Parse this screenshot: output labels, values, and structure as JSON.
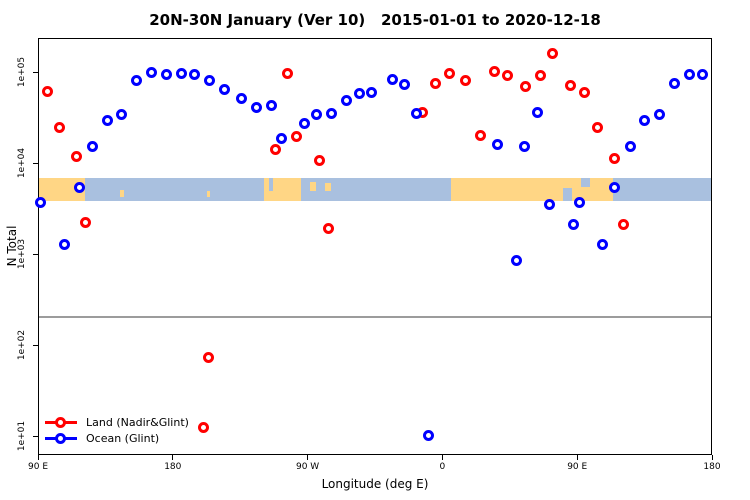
{
  "title": "20N-30N January (Ver 10)   2015-01-01 to 2020-12-18",
  "colors": {
    "land_series": "#ff0000",
    "ocean_series": "#0000ff",
    "map_land": "#ffd685",
    "map_ocean": "#a9c0df",
    "reference_line": "#9c9c9c",
    "axis": "#000000"
  },
  "legend": {
    "items": [
      {
        "label": "Land (Nadir&Glint)",
        "color": "#ff0000"
      },
      {
        "label": "Ocean (Glint)",
        "color": "#0000ff"
      }
    ]
  },
  "chart_data": {
    "type": "scatter",
    "title": "20N-30N January (Ver 10)   2015-01-01 to 2020-12-18",
    "xlabel": "Longitude (deg E)",
    "ylabel": "N Total",
    "x_axis": {
      "range_deg": [
        90,
        540
      ],
      "ticks": [
        {
          "lon": 90,
          "label": "90 E"
        },
        {
          "lon": 180,
          "label": "180"
        },
        {
          "lon": 270,
          "label": "90 W"
        },
        {
          "lon": 360,
          "label": "0"
        },
        {
          "lon": 450,
          "label": "90 E"
        },
        {
          "lon": 540,
          "label": "180"
        }
      ],
      "note": "longitude axis spans 450 deg, wrapping eastward from 90E"
    },
    "y_axis": {
      "scale": "log",
      "range": [
        6.2,
        236000
      ],
      "ticks": [
        {
          "value": 100000,
          "label": "1e+05"
        },
        {
          "value": 10000,
          "label": "1e+04"
        },
        {
          "value": 1000,
          "label": "1e+03"
        },
        {
          "value": 100,
          "label": "1e+02"
        },
        {
          "value": 10,
          "label": "1e+01"
        }
      ],
      "grid": false
    },
    "reference_line": {
      "value": 208,
      "color": "#9c9c9c"
    },
    "map_band": {
      "value_top": 7000,
      "value_bottom": 3900,
      "ocean_color": "#a9c0df",
      "land_color": "#ffd685",
      "land_segments": [
        {
          "lon": [
            90,
            121
          ],
          "top": 0,
          "h": 1
        },
        {
          "lon": [
            144,
            147
          ],
          "top": 0.5,
          "h": 0.3
        },
        {
          "lon": [
            202,
            204
          ],
          "top": 0.55,
          "h": 0.25
        },
        {
          "lon": [
            240,
            265
          ],
          "top": 0,
          "h": 1
        },
        {
          "lon": [
            271,
            275
          ],
          "top": 0.15,
          "h": 0.4
        },
        {
          "lon": [
            281,
            285
          ],
          "top": 0.2,
          "h": 0.35
        },
        {
          "lon": [
            365,
            473
          ],
          "top": 0,
          "h": 1
        }
      ],
      "ocean_patches": [
        {
          "lon": [
            243.5,
            246
          ],
          "top": 0,
          "h": 0.55
        },
        {
          "lon": [
            440,
            446
          ],
          "top": 0.45,
          "h": 0.55
        },
        {
          "lon": [
            452,
            458
          ],
          "top": 0,
          "h": 0.4
        }
      ]
    },
    "series": [
      {
        "name": "Land (Nadir&Glint)",
        "color": "#ff0000",
        "points": [
          [
            96,
            62000
          ],
          [
            104,
            25000
          ],
          [
            115,
            12000
          ],
          [
            121,
            2250
          ],
          [
            200,
            12.6
          ],
          [
            203,
            74
          ],
          [
            248,
            14300
          ],
          [
            256,
            100000
          ],
          [
            262,
            20300
          ],
          [
            277,
            10800
          ],
          [
            283,
            1980
          ],
          [
            346,
            37200
          ],
          [
            355,
            77600
          ],
          [
            364,
            100000
          ],
          [
            375,
            83700
          ],
          [
            385,
            20800
          ],
          [
            394,
            105000
          ],
          [
            403,
            92700
          ],
          [
            415,
            71900
          ],
          [
            425,
            92700
          ],
          [
            433,
            162000
          ],
          [
            445,
            73800
          ],
          [
            454,
            61800
          ],
          [
            463,
            24900
          ],
          [
            474,
            11600
          ],
          [
            480,
            2190
          ]
        ]
      },
      {
        "name": "Ocean (Glint)",
        "color": "#0000ff",
        "points": [
          [
            91,
            3820
          ],
          [
            107,
            1320
          ],
          [
            117,
            5450
          ],
          [
            126,
            15400
          ],
          [
            136,
            29700
          ],
          [
            145,
            35400
          ],
          [
            155,
            81700
          ],
          [
            165,
            102000
          ],
          [
            175,
            97500
          ],
          [
            185,
            100000
          ],
          [
            194,
            97500
          ],
          [
            204,
            83700
          ],
          [
            214,
            66700
          ],
          [
            225,
            53100
          ],
          [
            235,
            42300
          ],
          [
            245,
            43400
          ],
          [
            252,
            19300
          ],
          [
            267,
            28200
          ],
          [
            275,
            35400
          ],
          [
            285,
            36300
          ],
          [
            295,
            50500
          ],
          [
            304,
            58800
          ],
          [
            312,
            60300
          ],
          [
            326,
            85900
          ],
          [
            334,
            75700
          ],
          [
            342,
            36300
          ],
          [
            350,
            10.3
          ],
          [
            396,
            16200
          ],
          [
            409,
            881
          ],
          [
            414,
            15400
          ],
          [
            423,
            37200
          ],
          [
            431,
            3630
          ],
          [
            447,
            2190
          ],
          [
            451,
            3820
          ],
          [
            466,
            1320
          ],
          [
            474,
            5450
          ],
          [
            485,
            15400
          ],
          [
            494,
            29700
          ],
          [
            504,
            35400
          ],
          [
            514,
            77600
          ],
          [
            524,
            97500
          ],
          [
            533,
            97500
          ]
        ]
      }
    ]
  }
}
